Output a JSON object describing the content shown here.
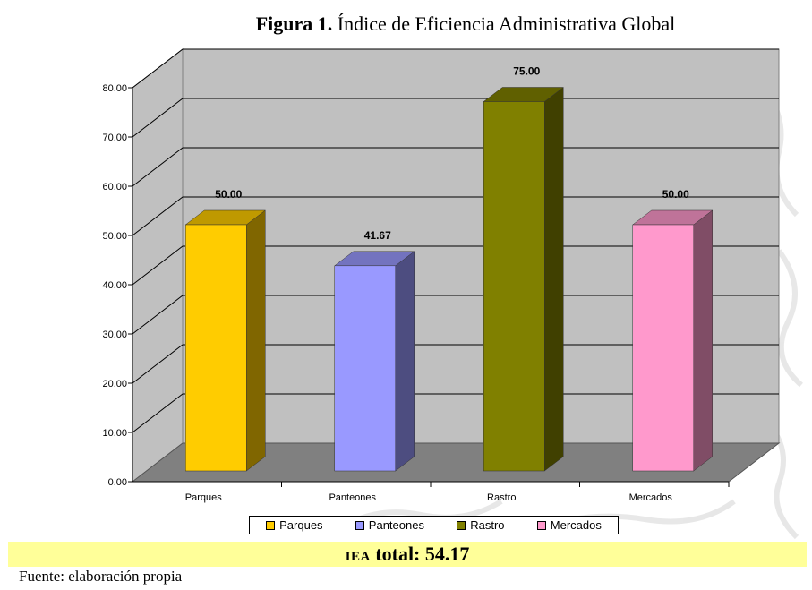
{
  "figure": {
    "label": "Figura 1.",
    "title": "Índice de Eficiencia Administrativa Global"
  },
  "chart_data": {
    "type": "bar",
    "categories": [
      "Parques",
      "Panteones",
      "Rastro",
      "Mercados"
    ],
    "values": [
      50.0,
      41.67,
      75.0,
      50.0
    ],
    "data_labels": [
      "50.00",
      "41.67",
      "75.00",
      "50.00"
    ],
    "ylim": [
      0,
      80
    ],
    "yticks": [
      "0.00",
      "10.00",
      "20.00",
      "30.00",
      "40.00",
      "50.00",
      "60.00",
      "70.00",
      "80.00"
    ],
    "grid": true,
    "style": "3d",
    "legend_position": "bottom",
    "legend": [
      "Parques",
      "Panteones",
      "Rastro",
      "Mercados"
    ],
    "colors": {
      "Parques": {
        "front": "#ffcc00",
        "side": "#806600",
        "top": "#bf9900"
      },
      "Panteones": {
        "front": "#9999ff",
        "side": "#4d4d80",
        "top": "#7373bf"
      },
      "Rastro": {
        "front": "#808000",
        "side": "#404000",
        "top": "#606000"
      },
      "Mercados": {
        "front": "#ff99cc",
        "side": "#804d66",
        "top": "#bf7399"
      }
    }
  },
  "summary": {
    "prefix": "IEA",
    "label": "total:",
    "value": "54.17",
    "background": "#ffff99"
  },
  "source": "Fuente: elaboración propia"
}
